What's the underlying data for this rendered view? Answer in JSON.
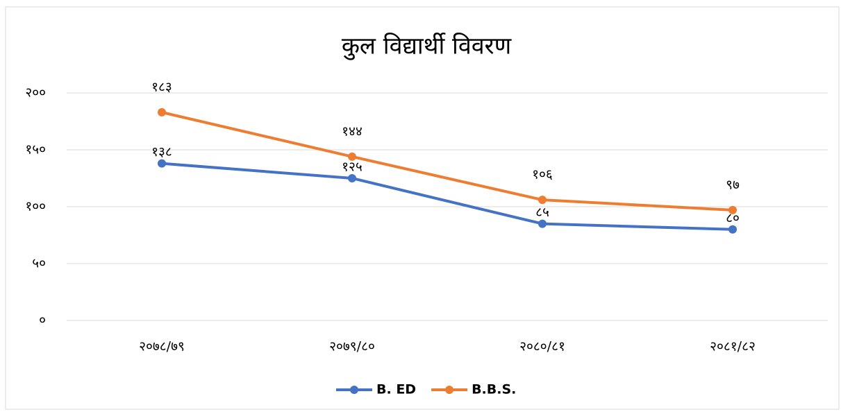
{
  "chart_data": {
    "type": "line",
    "title": "कुल विद्यार्थी विवरण",
    "categories": [
      "२०७८/७९",
      "२०७९/८०",
      "२०८०/८१",
      "२०८१/८२"
    ],
    "series": [
      {
        "name": "B. ED",
        "color": "#4472c4",
        "values": [
          138,
          125,
          85,
          80
        ],
        "value_labels": [
          "१३८",
          "१२५",
          "८५",
          "८०"
        ]
      },
      {
        "name": "B.B.S.",
        "color": "#ed7d31",
        "values": [
          183,
          144,
          106,
          97
        ],
        "value_labels": [
          "१८३",
          "१४४",
          "१०६",
          "९७"
        ]
      }
    ],
    "ylim": [
      0,
      200
    ],
    "yticks": [
      {
        "value": 0,
        "label": "०"
      },
      {
        "value": 50,
        "label": "५०"
      },
      {
        "value": 100,
        "label": "१००"
      },
      {
        "value": 150,
        "label": "१५०"
      },
      {
        "value": 200,
        "label": "२००"
      }
    ],
    "grid": true,
    "legend": "bottom"
  }
}
